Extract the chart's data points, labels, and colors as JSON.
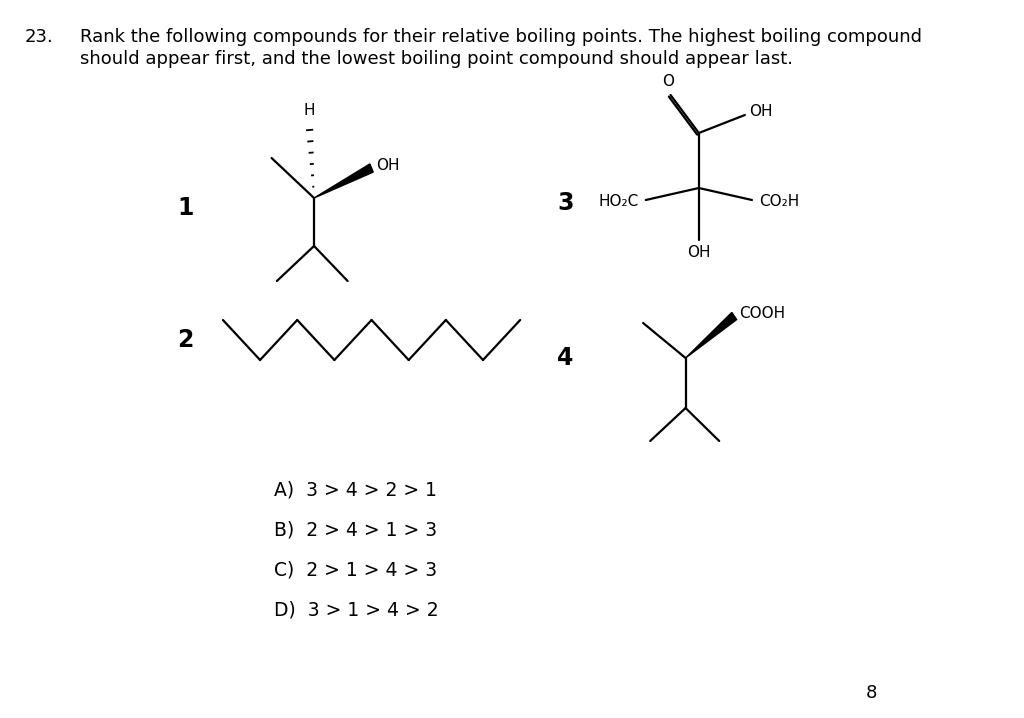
{
  "background_color": "#ffffff",
  "question_number": "23.",
  "question_text_line1": "Rank the following compounds for their relative boiling points. The highest boiling compound",
  "question_text_line2": "should appear first, and the lowest boiling point compound should appear last.",
  "answer_choices": [
    "A)  3 > 4 > 2 > 1",
    "B)  2 > 4 > 1 > 3",
    "C)  2 > 1 > 4 > 3",
    "D)  3 > 1 > 4 > 2"
  ],
  "page_number": "8",
  "font_color": "#000000",
  "title_fontsize": 13.0,
  "answer_fontsize": 13.5,
  "compound_label_fontsize": 17
}
